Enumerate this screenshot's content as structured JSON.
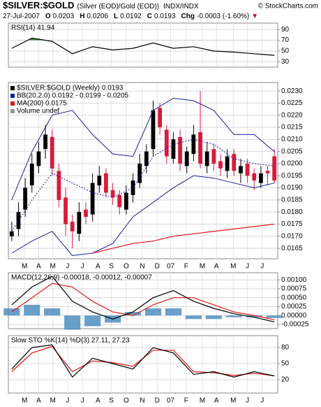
{
  "header": {
    "symbol": "$SILVER:$GOLD",
    "description": "(Silver (EOD)/Gold (EOD))",
    "exchange": "INDX/INDX",
    "credit": "© StockCharts.com",
    "date": "27-Jul-2007",
    "quote": [
      {
        "label": "O",
        "value": 0.0203
      },
      {
        "label": "H",
        "value": 0.0206
      },
      {
        "label": "L",
        "value": 0.0192
      },
      {
        "label": "C",
        "value": 0.0193
      },
      {
        "label": "Chg",
        "value": -0.0003
      }
    ],
    "change_pct": "(-1.60%)",
    "arrow": "▼"
  },
  "chart_data": [
    {
      "type": "line",
      "title": "RSI(14) 41.94",
      "xlim": [
        -0.5,
        39.5
      ],
      "ylim": [
        20,
        102
      ],
      "yticks": [
        90,
        70,
        50,
        30
      ],
      "grid": true,
      "fill_above": 70,
      "fill_color": "#3a8a3a",
      "series": [
        {
          "x": [
            0,
            3,
            6,
            9,
            12,
            15,
            18,
            21,
            24,
            27,
            30,
            33,
            36,
            39
          ],
          "values": [
            55,
            74,
            68,
            45,
            58,
            52,
            55,
            65,
            55,
            58,
            50,
            48,
            45,
            41.94
          ],
          "color": "#000000"
        }
      ]
    },
    {
      "type": "candlestick",
      "xlim": [
        -0.5,
        39.5
      ],
      "ylim": [
        0.01607,
        0.02335
      ],
      "grid": true,
      "yticks": [
        0.0165,
        {
          "value": 0.017,
          "label": "0.0170"
        },
        0.0175,
        {
          "value": 0.018,
          "label": "0.0180"
        },
        0.0185,
        {
          "value": 0.019,
          "label": "0.0190"
        },
        0.0195,
        {
          "value": 0.02,
          "label": "0.0200"
        },
        0.0205,
        {
          "value": 0.021,
          "label": "0.0210"
        },
        0.0215,
        {
          "value": 0.022,
          "label": "0.0220"
        },
        0.0225,
        {
          "value": 0.023,
          "label": "0.0230"
        }
      ],
      "xticks": [
        {
          "value": 1.9,
          "label": "M"
        },
        {
          "value": 4.0,
          "label": "A"
        },
        {
          "value": 6.1,
          "label": "M"
        },
        {
          "value": 8.3,
          "label": "J"
        },
        {
          "value": 10.5,
          "label": "J"
        },
        {
          "value": 12.8,
          "label": "A"
        },
        {
          "value": 14.8,
          "label": "S"
        },
        {
          "value": 17.0,
          "label": "O"
        },
        {
          "value": 19.4,
          "label": "N"
        },
        {
          "value": 21.6,
          "label": "D"
        },
        {
          "value": 23.6,
          "label": "07"
        },
        {
          "value": 25.9,
          "label": "F"
        },
        {
          "value": 28.3,
          "label": "M"
        },
        {
          "value": 30.4,
          "label": "A"
        },
        {
          "value": 32.9,
          "label": "M"
        },
        {
          "value": 35.0,
          "label": "J"
        },
        {
          "value": 37.2,
          "label": "J"
        }
      ],
      "series": [
        {
          "name": "$SILVER:$GOLD (Weekly) 0.0193",
          "type": "candlestick",
          "up_color": "#000000",
          "down_color": "#d81b3c",
          "x": [
            0,
            1,
            2,
            3,
            4,
            5,
            6,
            7,
            8,
            9,
            10,
            11,
            12,
            13,
            14,
            15,
            16,
            17,
            18,
            19,
            20,
            21,
            22,
            23,
            24,
            25,
            26,
            27,
            28,
            29,
            30,
            31,
            32,
            33,
            34,
            35,
            36,
            37,
            38,
            39
          ],
          "open": [
            0.017,
            0.0173,
            0.0181,
            0.0191,
            0.0199,
            0.0206,
            0.0211,
            0.0197,
            0.0186,
            0.0176,
            0.0171,
            0.0181,
            0.0179,
            0.0191,
            0.0196,
            0.0189,
            0.0187,
            0.0181,
            0.0187,
            0.0192,
            0.0199,
            0.0206,
            0.0223,
            0.0214,
            0.0202,
            0.0211,
            0.0199,
            0.0204,
            0.0213,
            0.0199,
            0.0206,
            0.0201,
            0.0197,
            0.0204,
            0.0196,
            0.02,
            0.0196,
            0.0192,
            0.0197,
            0.0203
          ],
          "high": [
            0.0176,
            0.0184,
            0.0194,
            0.0204,
            0.0209,
            0.0216,
            0.0214,
            0.02,
            0.019,
            0.0179,
            0.0184,
            0.0184,
            0.0196,
            0.0199,
            0.0198,
            0.0192,
            0.0189,
            0.0191,
            0.0196,
            0.0204,
            0.0208,
            0.0226,
            0.0225,
            0.0216,
            0.0213,
            0.0214,
            0.0207,
            0.0216,
            0.023,
            0.0209,
            0.0208,
            0.0204,
            0.0206,
            0.0206,
            0.0202,
            0.0202,
            0.0198,
            0.0199,
            0.0199,
            0.0206
          ],
          "low": [
            0.0168,
            0.017,
            0.0178,
            0.0188,
            0.0196,
            0.0202,
            0.0195,
            0.0182,
            0.017,
            0.0165,
            0.0168,
            0.0175,
            0.0176,
            0.0188,
            0.0186,
            0.0183,
            0.0179,
            0.0179,
            0.0184,
            0.019,
            0.0196,
            0.0203,
            0.0212,
            0.02,
            0.02,
            0.0197,
            0.0196,
            0.0201,
            0.0198,
            0.0196,
            0.0197,
            0.0195,
            0.0194,
            0.0195,
            0.0192,
            0.0192,
            0.0189,
            0.019,
            0.0191,
            0.0192
          ],
          "close": [
            0.0172,
            0.018,
            0.019,
            0.02,
            0.0205,
            0.0212,
            0.0198,
            0.0185,
            0.0175,
            0.0172,
            0.018,
            0.0178,
            0.0192,
            0.0195,
            0.0188,
            0.0186,
            0.0182,
            0.0188,
            0.0193,
            0.02,
            0.0205,
            0.0222,
            0.0215,
            0.0203,
            0.021,
            0.02,
            0.0205,
            0.0212,
            0.02,
            0.0205,
            0.02,
            0.0198,
            0.0203,
            0.0197,
            0.0199,
            0.0195,
            0.0193,
            0.0196,
            0.0196,
            0.0193
          ]
        },
        {
          "name": "BB(20,2.0) 0.0192 - 0.0199 - 0.0205",
          "type": "band",
          "color": "#1c1c9c",
          "x": [
            0,
            3,
            6,
            9,
            12,
            15,
            18,
            21,
            24,
            27,
            30,
            33,
            36,
            39
          ],
          "upper": [
            0.0185,
            0.0205,
            0.022,
            0.0222,
            0.0212,
            0.0204,
            0.0203,
            0.0222,
            0.0227,
            0.0226,
            0.0222,
            0.0212,
            0.0212,
            0.0205
          ],
          "middle": [
            0.0172,
            0.0185,
            0.0196,
            0.0192,
            0.0188,
            0.0186,
            0.019,
            0.0203,
            0.0208,
            0.021,
            0.0208,
            0.0202,
            0.02,
            0.0199
          ],
          "lower": [
            0.0163,
            0.0168,
            0.0172,
            0.0162,
            0.0163,
            0.0167,
            0.0178,
            0.0184,
            0.019,
            0.0195,
            0.0194,
            0.0192,
            0.019,
            0.0192
          ]
        },
        {
          "name": "MA(200) 0.0175",
          "type": "line",
          "color": "#e01818",
          "x": [
            0,
            3,
            6,
            9,
            12,
            15,
            18,
            21,
            24,
            27,
            30,
            33,
            36,
            39
          ],
          "values": [
            null,
            null,
            null,
            null,
            0.0163,
            0.0165,
            0.0167,
            0.0168,
            0.017,
            0.0171,
            0.0172,
            0.0173,
            0.0174,
            0.0175
          ]
        },
        {
          "name": "Volume undef",
          "color": "#999999"
        }
      ]
    },
    {
      "type": "line",
      "title": "MACD(12,26,9) -0.00018, -0.00012, -0.00007",
      "xlim": [
        -0.5,
        39.5
      ],
      "ylim": [
        -0.00037,
        0.0012
      ],
      "grid": true,
      "yticks": [
        {
          "value": 0.001,
          "label": "0.00100"
        },
        {
          "value": 0.00075,
          "label": "0.00075"
        },
        {
          "value": 0.0005,
          "label": "0.00050"
        },
        {
          "value": 0.00025,
          "label": "0.00025"
        },
        {
          "value": 0,
          "label": "0.00000"
        },
        {
          "value": -0.00025,
          "label": "-0.00025"
        }
      ],
      "series": [
        {
          "type": "bar",
          "color": "#4f8fc0",
          "x": [
            0,
            3,
            6,
            9,
            12,
            15,
            18,
            21,
            24,
            27,
            30,
            33,
            36,
            39
          ],
          "values": [
            0.0002,
            0.0003,
            0.0002,
            -0.0004,
            -0.0003,
            -0.0002,
            0.0001,
            0.0002,
            0.0002,
            -0.0001,
            -0.0001,
            -5e-05,
            -5e-05,
            -7e-05
          ]
        },
        {
          "type": "line",
          "color": "#e01818",
          "x": [
            0,
            3,
            6,
            9,
            12,
            15,
            18,
            21,
            24,
            27,
            30,
            33,
            36,
            39
          ],
          "values": [
            0.0001,
            0.0005,
            0.0009,
            0.0008,
            0.0004,
            0.0001,
            0.0,
            0.0003,
            0.0005,
            0.0005,
            0.0003,
            0.0001,
            0.0,
            -0.00012
          ]
        },
        {
          "type": "line",
          "color": "#000000",
          "x": [
            0,
            3,
            6,
            9,
            12,
            15,
            18,
            21,
            24,
            27,
            30,
            33,
            36,
            39
          ],
          "values": [
            0.0003,
            0.0008,
            0.0011,
            0.0004,
            0.0001,
            -0.0001,
            0.0001,
            0.0005,
            0.0007,
            0.0004,
            0.0002,
            5e-05,
            -5e-05,
            -0.00018
          ]
        }
      ]
    },
    {
      "type": "line",
      "title": "Slow STO %K(14) %D(3) 27.11, 27.23",
      "xlim": [
        -0.5,
        39.5
      ],
      "ylim": [
        -4.8,
        102.2
      ],
      "yticks": [
        80,
        50,
        20
      ],
      "grid": true,
      "xticks": [
        {
          "value": 1.9,
          "label": "M"
        },
        {
          "value": 4.0,
          "label": "A"
        },
        {
          "value": 6.1,
          "label": "M"
        },
        {
          "value": 8.3,
          "label": "J"
        },
        {
          "value": 10.5,
          "label": "J"
        },
        {
          "value": 12.8,
          "label": "A"
        },
        {
          "value": 14.8,
          "label": "S"
        },
        {
          "value": 17.0,
          "label": "O"
        },
        {
          "value": 19.4,
          "label": "N"
        },
        {
          "value": 21.6,
          "label": "D"
        },
        {
          "value": 23.6,
          "label": "07"
        },
        {
          "value": 25.9,
          "label": "F"
        },
        {
          "value": 28.3,
          "label": "M"
        },
        {
          "value": 30.4,
          "label": "A"
        },
        {
          "value": 32.9,
          "label": "M"
        },
        {
          "value": 35.0,
          "label": "J"
        },
        {
          "value": 37.2,
          "label": "J"
        }
      ],
      "series": [
        {
          "type": "line",
          "color": "#e01818",
          "x": [
            0,
            3,
            6,
            9,
            12,
            15,
            18,
            21,
            24,
            27,
            30,
            33,
            36,
            39
          ],
          "values": [
            35,
            70,
            82,
            35,
            55,
            52,
            45,
            75,
            75,
            35,
            33,
            28,
            32,
            27.23
          ]
        },
        {
          "type": "line",
          "color": "#000000",
          "x": [
            0,
            3,
            6,
            9,
            12,
            15,
            18,
            21,
            24,
            27,
            30,
            33,
            36,
            39
          ],
          "values": [
            40,
            80,
            85,
            25,
            60,
            50,
            40,
            80,
            70,
            30,
            35,
            25,
            35,
            27.11
          ]
        }
      ]
    }
  ]
}
